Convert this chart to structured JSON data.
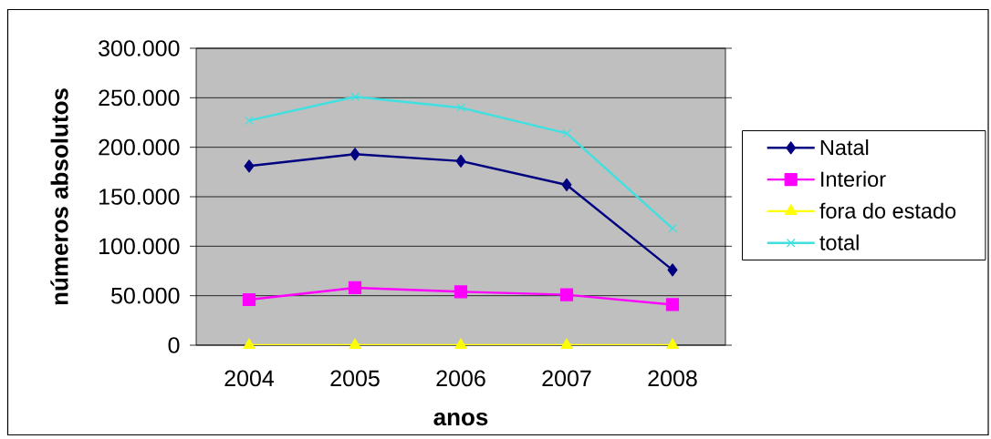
{
  "chart_data": {
    "type": "line",
    "xlabel": "anos",
    "ylabel": "números absolutos",
    "categories": [
      "2004",
      "2005",
      "2006",
      "2007",
      "2008"
    ],
    "ylim": [
      0,
      300000
    ],
    "yticks": [
      0,
      {
        "value": 50000,
        "label": "50.000"
      },
      {
        "value": 100000,
        "label": "100.000"
      },
      {
        "value": 150000,
        "label": "150.000"
      },
      {
        "value": 200000,
        "label": "200.000"
      },
      {
        "value": 250000,
        "label": "250.000"
      },
      {
        "value": 300000,
        "label": "300.000"
      }
    ],
    "grid": "y",
    "legend": "right",
    "series": [
      {
        "name": "Natal",
        "color": "#000080",
        "marker": "diamond",
        "values": [
          181000,
          193000,
          186000,
          162000,
          76000
        ]
      },
      {
        "name": "Interior",
        "color": "#ff00ff",
        "marker": "square",
        "values": [
          46000,
          58000,
          54000,
          51000,
          41000
        ]
      },
      {
        "name": "fora do estado",
        "color": "#ffff00",
        "marker": "triangle",
        "values": [
          0,
          0,
          0,
          0,
          0
        ]
      },
      {
        "name": "total",
        "color": "#40e0e0",
        "marker": "cross",
        "values": [
          227000,
          251000,
          240000,
          214000,
          118000
        ]
      }
    ]
  }
}
